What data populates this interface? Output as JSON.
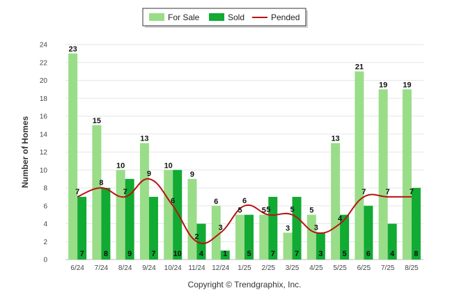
{
  "chart_data": {
    "type": "bar",
    "ylabel": "Number of Homes",
    "xlabel": "",
    "ylim": [
      0,
      24
    ],
    "ytick_step": 2,
    "grid": true,
    "legend_position": "top-center",
    "categories": [
      "6/24",
      "7/24",
      "8/24",
      "9/24",
      "10/24",
      "11/24",
      "12/24",
      "1/25",
      "2/25",
      "3/25",
      "4/25",
      "5/25",
      "6/25",
      "7/25",
      "8/25"
    ],
    "series": [
      {
        "name": "For Sale",
        "kind": "bar",
        "color": "#99dd88",
        "values": [
          23,
          15,
          10,
          13,
          10,
          9,
          6,
          5,
          5,
          3,
          5,
          13,
          21,
          19,
          19
        ]
      },
      {
        "name": "Sold",
        "kind": "bar",
        "color": "#11aa33",
        "values": [
          7,
          8,
          9,
          7,
          10,
          4,
          1,
          5,
          7,
          7,
          3,
          5,
          6,
          4,
          8
        ]
      },
      {
        "name": "Pended",
        "kind": "line",
        "color": "#bb1111",
        "values": [
          7,
          8,
          7,
          9,
          6,
          2,
          3,
          6,
          5,
          5,
          3,
          4,
          7,
          7,
          7
        ]
      }
    ],
    "credit": "Copyright © Trendgraphix, Inc."
  }
}
